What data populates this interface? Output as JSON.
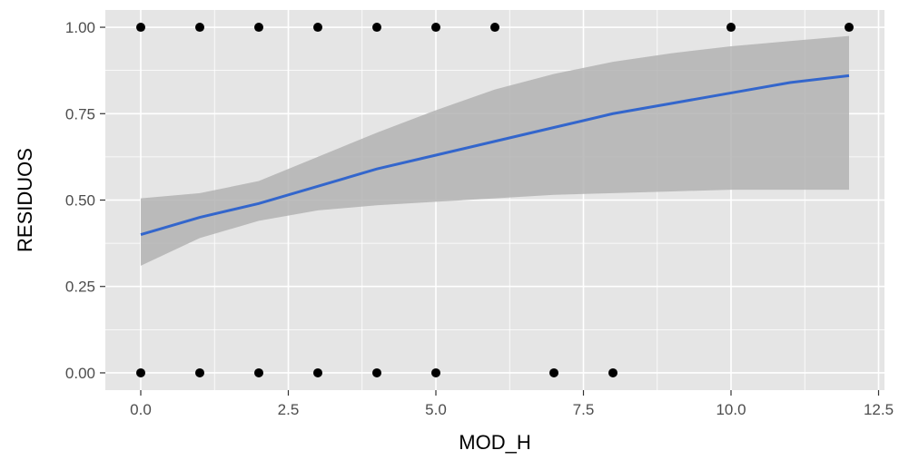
{
  "chart_data": {
    "type": "scatter",
    "title": "",
    "xlabel": "MOD_H",
    "ylabel": "RESIDUOS",
    "xlim": [
      -0.6,
      12.6
    ],
    "ylim": [
      -0.05,
      1.05
    ],
    "x_ticks": [
      0,
      2.5,
      5,
      7.5,
      10,
      12.5
    ],
    "x_tick_labels": [
      "0.0",
      "2.5",
      "5.0",
      "7.5",
      "10.0",
      "12.5"
    ],
    "y_ticks": [
      0,
      0.25,
      0.5,
      0.75,
      1.0
    ],
    "y_tick_labels": [
      "0.00",
      "0.25",
      "0.50",
      "0.75",
      "1.00"
    ],
    "grid": true,
    "legend": "none",
    "colors": {
      "panel": "#e5e5e5",
      "grid": "#ffffff",
      "points": "#000000",
      "fit_line": "#3366cc",
      "ribbon": "#b3b3b3"
    },
    "points": [
      {
        "x": 0,
        "y": 1
      },
      {
        "x": 1,
        "y": 1
      },
      {
        "x": 2,
        "y": 1
      },
      {
        "x": 3,
        "y": 1
      },
      {
        "x": 4,
        "y": 1
      },
      {
        "x": 5,
        "y": 1
      },
      {
        "x": 6,
        "y": 1
      },
      {
        "x": 10,
        "y": 1
      },
      {
        "x": 12,
        "y": 1
      },
      {
        "x": 0,
        "y": 0
      },
      {
        "x": 1,
        "y": 0
      },
      {
        "x": 2,
        "y": 0
      },
      {
        "x": 3,
        "y": 0
      },
      {
        "x": 4,
        "y": 0
      },
      {
        "x": 5,
        "y": 0
      },
      {
        "x": 7,
        "y": 0
      },
      {
        "x": 8,
        "y": 0
      }
    ],
    "fit": {
      "x": [
        0,
        1,
        2,
        3,
        4,
        5,
        6,
        7,
        8,
        9,
        10,
        11,
        12
      ],
      "y": [
        0.4,
        0.45,
        0.49,
        0.54,
        0.59,
        0.63,
        0.67,
        0.71,
        0.75,
        0.78,
        0.81,
        0.84,
        0.86
      ],
      "lower": [
        0.31,
        0.39,
        0.44,
        0.47,
        0.485,
        0.495,
        0.505,
        0.515,
        0.52,
        0.525,
        0.53,
        0.53,
        0.53
      ],
      "upper": [
        0.505,
        0.52,
        0.555,
        0.625,
        0.695,
        0.76,
        0.82,
        0.865,
        0.9,
        0.925,
        0.945,
        0.96,
        0.975
      ]
    }
  }
}
